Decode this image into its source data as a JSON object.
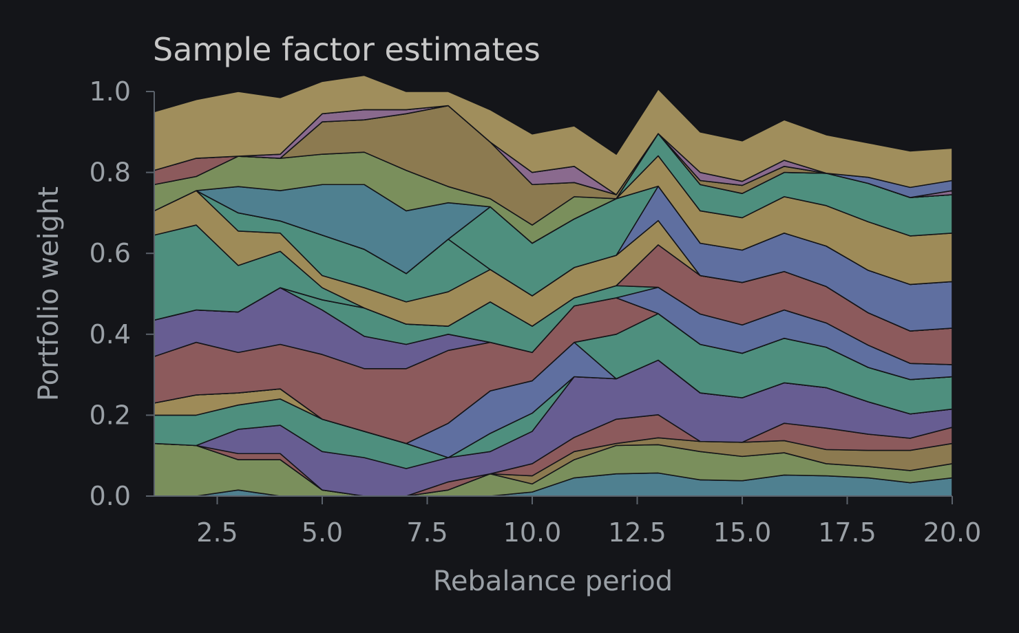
{
  "chart_data": {
    "type": "area",
    "title": "Sample factor estimates",
    "xlabel": "Rebalance period",
    "ylabel": "Portfolio weight",
    "xlim": [
      1,
      20
    ],
    "ylim": [
      0,
      1
    ],
    "grid": false,
    "x": [
      1,
      2,
      3,
      4,
      5,
      6,
      7,
      8,
      9,
      10,
      11,
      12,
      13,
      14,
      15,
      16,
      17,
      18,
      19,
      20
    ],
    "x_ticks": [
      "2.5",
      "5.0",
      "7.5",
      "10.0",
      "12.5",
      "15.0",
      "17.5",
      "20.0"
    ],
    "y_ticks": [
      "0.0",
      "0.2",
      "0.4",
      "0.6",
      "0.8",
      "1.0"
    ],
    "series": [
      {
        "color": "#4f8090",
        "values": [
          0.0,
          0.0,
          0.015,
          0.0,
          0.0,
          0.0,
          0.0,
          0.0,
          0.0,
          0.01,
          0.045,
          0.055,
          0.057,
          0.04,
          0.038,
          0.052,
          0.05,
          0.045,
          0.033,
          0.045
        ]
      },
      {
        "color": "#7a8f5c",
        "values": [
          0.13,
          0.125,
          0.075,
          0.09,
          0.015,
          0.0,
          0.0,
          0.015,
          0.055,
          0.02,
          0.045,
          0.07,
          0.07,
          0.07,
          0.06,
          0.055,
          0.03,
          0.028,
          0.03,
          0.035
        ]
      },
      {
        "color": "#8c7a50",
        "values": [
          0.0,
          0.0,
          0.0,
          0.0,
          0.0,
          0.0,
          0.0,
          0.0,
          0.0,
          0.02,
          0.02,
          0.005,
          0.017,
          0.025,
          0.035,
          0.03,
          0.035,
          0.04,
          0.05,
          0.05
        ]
      },
      {
        "color": "#8c5a5c",
        "values": [
          0.0,
          0.0,
          0.015,
          0.015,
          0.0,
          0.0,
          0.0,
          0.02,
          0.0,
          0.03,
          0.035,
          0.06,
          0.057,
          0.0,
          0.0,
          0.043,
          0.053,
          0.04,
          0.03,
          0.04
        ]
      },
      {
        "color": "#675d92",
        "values": [
          0.0,
          0.0,
          0.06,
          0.07,
          0.095,
          0.095,
          0.068,
          0.06,
          0.055,
          0.08,
          0.15,
          0.1,
          0.135,
          0.12,
          0.11,
          0.1,
          0.1,
          0.08,
          0.06,
          0.045
        ]
      },
      {
        "color": "#4e8f7e",
        "values": [
          0.07,
          0.075,
          0.06,
          0.065,
          0.08,
          0.065,
          0.062,
          0.0,
          0.045,
          0.045,
          0.0,
          0.0,
          0.0,
          0.0,
          0.0,
          0.0,
          0.0,
          0.0,
          0.0,
          0.0
        ]
      },
      {
        "color": "#9e8b58",
        "values": [
          0.03,
          0.05,
          0.03,
          0.025,
          0.0,
          0.0,
          0.0,
          0.0,
          0.0,
          0.0,
          0.0,
          0.0,
          0.0,
          0.0,
          0.0,
          0.0,
          0.0,
          0.0,
          0.0,
          0.0
        ]
      },
      {
        "color": "#5f6fa0",
        "values": [
          0.0,
          0.0,
          0.0,
          0.0,
          0.0,
          0.0,
          0.0,
          0.085,
          0.105,
          0.08,
          0.085,
          0.0,
          0.0,
          0.0,
          0.0,
          0.0,
          0.0,
          0.0,
          0.0,
          0.0
        ]
      },
      {
        "color": "#4e8f7e",
        "values": [
          0.0,
          0.0,
          0.0,
          0.0,
          0.0,
          0.0,
          0.0,
          0.0,
          0.0,
          0.0,
          0.0,
          0.11,
          0.115,
          0.12,
          0.11,
          0.11,
          0.1,
          0.085,
          0.085,
          0.08
        ]
      },
      {
        "color": "#675d92",
        "values": [
          0.0,
          0.0,
          0.0,
          0.0,
          0.0,
          0.0,
          0.0,
          0.0,
          0.0,
          0.0,
          0.0,
          0.0,
          0.0,
          0.0,
          0.0,
          0.0,
          0.0,
          0.0,
          0.0,
          0.0
        ]
      },
      {
        "color": "#8c5a5c",
        "values": [
          0.115,
          0.13,
          0.1,
          0.11,
          0.16,
          0.155,
          0.185,
          0.18,
          0.12,
          0.07,
          0.09,
          0.09,
          0.0,
          0.0,
          0.0,
          0.0,
          0.0,
          0.0,
          0.0,
          0.0
        ]
      },
      {
        "color": "#675d92",
        "values": [
          0.09,
          0.08,
          0.1,
          0.14,
          0.11,
          0.08,
          0.06,
          0.04,
          0.0,
          0.0,
          0.0,
          0.0,
          0.0,
          0.0,
          0.0,
          0.0,
          0.0,
          0.0,
          0.0,
          0.0
        ]
      },
      {
        "color": "#5f6fa0",
        "values": [
          0.0,
          0.0,
          0.0,
          0.0,
          0.0,
          0.0,
          0.0,
          0.0,
          0.0,
          0.0,
          0.0,
          0.0,
          0.065,
          0.075,
          0.07,
          0.07,
          0.06,
          0.055,
          0.04,
          0.03
        ]
      },
      {
        "color": "#4e8f7e",
        "values": [
          0.0,
          0.0,
          0.0,
          0.0,
          0.025,
          0.07,
          0.05,
          0.02,
          0.1,
          0.065,
          0.02,
          0.03,
          0.0,
          0.0,
          0.0,
          0.0,
          0.0,
          0.0,
          0.0,
          0.0
        ]
      },
      {
        "color": "#8c5a5c",
        "values": [
          0.0,
          0.0,
          0.0,
          0.0,
          0.0,
          0.0,
          0.0,
          0.0,
          0.0,
          0.0,
          0.0,
          0.0,
          0.105,
          0.095,
          0.105,
          0.095,
          0.09,
          0.08,
          0.08,
          0.09
        ]
      },
      {
        "color": "#4e8f7e",
        "values": [
          0.21,
          0.21,
          0.115,
          0.09,
          0.03,
          0.0,
          0.0,
          0.0,
          0.0,
          0.0,
          0.0,
          0.0,
          0.0,
          0.0,
          0.0,
          0.0,
          0.0,
          0.0,
          0.0,
          0.0
        ]
      },
      {
        "color": "#9e8b58",
        "values": [
          0.06,
          0.085,
          0.085,
          0.045,
          0.03,
          0.05,
          0.055,
          0.085,
          0.08,
          0.075,
          0.075,
          0.075,
          0.06,
          0.0,
          0.0,
          0.0,
          0.0,
          0.0,
          0.0,
          0.0
        ]
      },
      {
        "color": "#4e8f7e",
        "values": [
          0.0,
          0.0,
          0.045,
          0.03,
          0.1,
          0.095,
          0.07,
          0.13,
          0.0,
          0.0,
          0.0,
          0.0,
          0.0,
          0.0,
          0.0,
          0.0,
          0.0,
          0.0,
          0.0,
          0.0
        ]
      },
      {
        "color": "#5f6fa0",
        "values": [
          0.0,
          0.0,
          0.0,
          0.0,
          0.0,
          0.0,
          0.0,
          0.0,
          0.0,
          0.0,
          0.0,
          0.0,
          0.085,
          0.08,
          0.08,
          0.095,
          0.1,
          0.105,
          0.115,
          0.115
        ]
      },
      {
        "color": "#4e8f7e",
        "values": [
          0.0,
          0.0,
          0.0,
          0.0,
          0.0,
          0.0,
          0.0,
          0.0,
          0.155,
          0.13,
          0.12,
          0.14,
          0.0,
          0.0,
          0.0,
          0.0,
          0.0,
          0.0,
          0.0,
          0.0
        ]
      },
      {
        "color": "#9e8b58",
        "values": [
          0.0,
          0.0,
          0.0,
          0.0,
          0.0,
          0.0,
          0.0,
          0.0,
          0.0,
          0.0,
          0.0,
          0.0,
          0.075,
          0.08,
          0.08,
          0.09,
          0.1,
          0.12,
          0.12,
          0.12
        ]
      },
      {
        "color": "#4e8f7e",
        "values": [
          0.0,
          0.0,
          0.0,
          0.0,
          0.0,
          0.0,
          0.0,
          0.0,
          0.0,
          0.0,
          0.0,
          0.0,
          0.055,
          0.065,
          0.06,
          0.06,
          0.08,
          0.095,
          0.095,
          0.095
        ]
      },
      {
        "color": "#4f8090",
        "values": [
          0.0,
          0.0,
          0.065,
          0.075,
          0.125,
          0.16,
          0.155,
          0.09,
          0.0,
          0.0,
          0.0,
          0.0,
          0.0,
          0.0,
          0.0,
          0.0,
          0.0,
          0.0,
          0.0,
          0.0
        ]
      },
      {
        "color": "#7a8f5c",
        "values": [
          0.065,
          0.035,
          0.075,
          0.08,
          0.075,
          0.08,
          0.1,
          0.04,
          0.02,
          0.045,
          0.055,
          0.0,
          0.0,
          0.0,
          0.0,
          0.0,
          0.0,
          0.0,
          0.0,
          0.0
        ]
      },
      {
        "color": "#8c7a50",
        "values": [
          0.0,
          0.0,
          0.0,
          0.0,
          0.08,
          0.08,
          0.14,
          0.2,
          0.14,
          0.1,
          0.035,
          0.01,
          0.0,
          0.01,
          0.02,
          0.015,
          0.0,
          0.0,
          0.0,
          0.0
        ]
      },
      {
        "color": "#8c5a5c",
        "values": [
          0.035,
          0.045,
          0.0,
          0.0,
          0.0,
          0.0,
          0.0,
          0.0,
          0.0,
          0.0,
          0.0,
          0.0,
          0.0,
          0.0,
          0.0,
          0.0,
          0.0,
          0.0,
          0.0,
          0.0
        ]
      },
      {
        "color": "#8a6a8e",
        "values": [
          0.0,
          0.0,
          0.0,
          0.01,
          0.02,
          0.025,
          0.01,
          0.0,
          0.0,
          0.03,
          0.04,
          0.0,
          0.0,
          0.02,
          0.01,
          0.015,
          0.0,
          0.0,
          0.0,
          0.01
        ]
      },
      {
        "color": "#5f6fa0",
        "values": [
          0.0,
          0.0,
          0.0,
          0.0,
          0.0,
          0.0,
          0.0,
          0.0,
          0.0,
          0.0,
          0.0,
          0.0,
          0.0,
          0.0,
          0.0,
          0.0,
          0.0,
          0.015,
          0.025,
          0.025
        ]
      },
      {
        "color": "#a08e5c",
        "values": [
          0.145,
          0.145,
          0.16,
          0.14,
          0.08,
          0.085,
          0.045,
          0.035,
          0.08,
          0.095,
          0.1,
          0.1,
          0.11,
          0.1,
          0.1,
          0.1,
          0.095,
          0.085,
          0.09,
          0.08
        ]
      }
    ]
  }
}
